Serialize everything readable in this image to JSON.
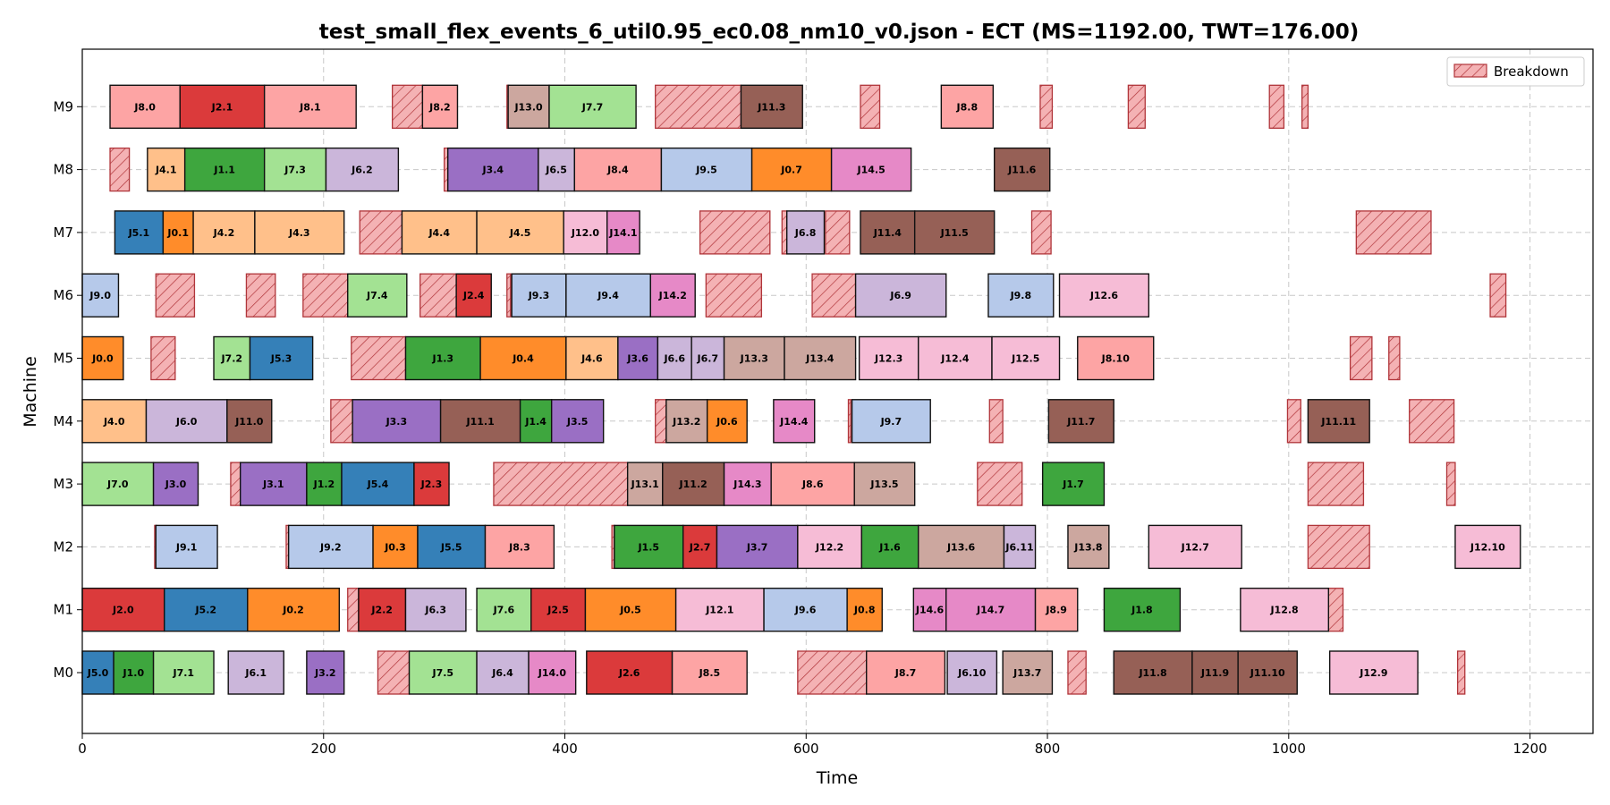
{
  "chart_data": {
    "type": "gantt",
    "title": "test_small_flex_events_6_util0.95_ec0.08_nm10_v0.json - ECT (MS=1192.00, TWT=176.00)",
    "xlabel": "Time",
    "ylabel": "Machine",
    "xlim": [
      0,
      1250
    ],
    "xticks": [
      0,
      200,
      400,
      600,
      800,
      1000,
      1200
    ],
    "machines": [
      "M0",
      "M1",
      "M2",
      "M3",
      "M4",
      "M5",
      "M6",
      "M7",
      "M8",
      "M9"
    ],
    "grid": true,
    "legend": {
      "position": "top-right",
      "entries": [
        "Breakdown"
      ]
    },
    "job_colors": {
      "J0": "#ff8c2a",
      "J1": "#3ea63e",
      "J2": "#db3a3b",
      "J3": "#9a6fc4",
      "J4": "#ffc08a",
      "J5": "#3580b8",
      "J6": "#cbb6da",
      "J7": "#a3e293",
      "J8": "#fda4a4",
      "J9": "#b6c9ea",
      "J11": "#966056",
      "J12": "#f6bcd6",
      "J13": "#cca79f",
      "J14": "#e689c7"
    },
    "breakdown_color": "#f4b2b4",
    "tasks": [
      {
        "m": "M0",
        "label": "J5.0",
        "start": 0,
        "end": 26
      },
      {
        "m": "M0",
        "label": "J1.0",
        "start": 26,
        "end": 59
      },
      {
        "m": "M0",
        "label": "J7.1",
        "start": 59,
        "end": 109
      },
      {
        "m": "M0",
        "label": "J6.1",
        "start": 121,
        "end": 167
      },
      {
        "m": "M0",
        "label": "J3.2",
        "start": 186,
        "end": 217
      },
      {
        "m": "M0",
        "label": "J7.5",
        "start": 271,
        "end": 327
      },
      {
        "m": "M0",
        "label": "J6.4",
        "start": 327,
        "end": 370
      },
      {
        "m": "M0",
        "label": "J14.0",
        "start": 370,
        "end": 409
      },
      {
        "m": "M0",
        "label": "J2.6",
        "start": 418,
        "end": 489
      },
      {
        "m": "M0",
        "label": "J8.5",
        "start": 489,
        "end": 551
      },
      {
        "m": "M0",
        "label": "J8.7",
        "start": 650,
        "end": 715
      },
      {
        "m": "M0",
        "label": "J6.10",
        "start": 717,
        "end": 758
      },
      {
        "m": "M0",
        "label": "J13.7",
        "start": 763,
        "end": 804
      },
      {
        "m": "M0",
        "label": "J11.8",
        "start": 855,
        "end": 920
      },
      {
        "m": "M0",
        "label": "J11.9",
        "start": 920,
        "end": 958
      },
      {
        "m": "M0",
        "label": "J11.10",
        "start": 958,
        "end": 1007
      },
      {
        "m": "M0",
        "label": "J12.9",
        "start": 1034,
        "end": 1107
      },
      {
        "m": "M1",
        "label": "J2.0",
        "start": 0,
        "end": 68
      },
      {
        "m": "M1",
        "label": "J5.2",
        "start": 68,
        "end": 137
      },
      {
        "m": "M1",
        "label": "J0.2",
        "start": 137,
        "end": 213
      },
      {
        "m": "M1",
        "label": "J2.2",
        "start": 229,
        "end": 268
      },
      {
        "m": "M1",
        "label": "J6.3",
        "start": 268,
        "end": 318
      },
      {
        "m": "M1",
        "label": "J7.6",
        "start": 327,
        "end": 372
      },
      {
        "m": "M1",
        "label": "J2.5",
        "start": 372,
        "end": 417
      },
      {
        "m": "M1",
        "label": "J0.5",
        "start": 417,
        "end": 492
      },
      {
        "m": "M1",
        "label": "J12.1",
        "start": 492,
        "end": 565
      },
      {
        "m": "M1",
        "label": "J9.6",
        "start": 565,
        "end": 634
      },
      {
        "m": "M1",
        "label": "J0.8",
        "start": 634,
        "end": 663
      },
      {
        "m": "M1",
        "label": "J14.6",
        "start": 689,
        "end": 716
      },
      {
        "m": "M1",
        "label": "J14.7",
        "start": 716,
        "end": 790
      },
      {
        "m": "M1",
        "label": "J8.9",
        "start": 790,
        "end": 825
      },
      {
        "m": "M1",
        "label": "J1.8",
        "start": 847,
        "end": 910
      },
      {
        "m": "M1",
        "label": "J12.8",
        "start": 960,
        "end": 1033
      },
      {
        "m": "M2",
        "label": "J9.1",
        "start": 61,
        "end": 112
      },
      {
        "m": "M2",
        "label": "J9.2",
        "start": 171,
        "end": 241
      },
      {
        "m": "M2",
        "label": "J0.3",
        "start": 241,
        "end": 278
      },
      {
        "m": "M2",
        "label": "J5.5",
        "start": 278,
        "end": 334
      },
      {
        "m": "M2",
        "label": "J8.3",
        "start": 334,
        "end": 391
      },
      {
        "m": "M2",
        "label": "J1.5",
        "start": 441,
        "end": 498
      },
      {
        "m": "M2",
        "label": "J2.7",
        "start": 498,
        "end": 526
      },
      {
        "m": "M2",
        "label": "J3.7",
        "start": 526,
        "end": 593
      },
      {
        "m": "M2",
        "label": "J12.2",
        "start": 593,
        "end": 646
      },
      {
        "m": "M2",
        "label": "J1.6",
        "start": 646,
        "end": 693
      },
      {
        "m": "M2",
        "label": "J13.6",
        "start": 693,
        "end": 764
      },
      {
        "m": "M2",
        "label": "J6.11",
        "start": 764,
        "end": 790
      },
      {
        "m": "M2",
        "label": "J13.8",
        "start": 817,
        "end": 851
      },
      {
        "m": "M2",
        "label": "J12.7",
        "start": 884,
        "end": 961
      },
      {
        "m": "M2",
        "label": "J12.10",
        "start": 1138,
        "end": 1192
      },
      {
        "m": "M3",
        "label": "J7.0",
        "start": 0,
        "end": 59
      },
      {
        "m": "M3",
        "label": "J3.0",
        "start": 59,
        "end": 96
      },
      {
        "m": "M3",
        "label": "J3.1",
        "start": 131,
        "end": 186
      },
      {
        "m": "M3",
        "label": "J1.2",
        "start": 186,
        "end": 215
      },
      {
        "m": "M3",
        "label": "J5.4",
        "start": 215,
        "end": 275
      },
      {
        "m": "M3",
        "label": "J2.3",
        "start": 275,
        "end": 304
      },
      {
        "m": "M3",
        "label": "J13.1",
        "start": 452,
        "end": 481
      },
      {
        "m": "M3",
        "label": "J11.2",
        "start": 481,
        "end": 532
      },
      {
        "m": "M3",
        "label": "J14.3",
        "start": 532,
        "end": 571
      },
      {
        "m": "M3",
        "label": "J8.6",
        "start": 571,
        "end": 640
      },
      {
        "m": "M3",
        "label": "J13.5",
        "start": 640,
        "end": 690
      },
      {
        "m": "M3",
        "label": "J1.7",
        "start": 796,
        "end": 847
      },
      {
        "m": "M4",
        "label": "J4.0",
        "start": 0,
        "end": 53
      },
      {
        "m": "M4",
        "label": "J6.0",
        "start": 53,
        "end": 120
      },
      {
        "m": "M4",
        "label": "J11.0",
        "start": 120,
        "end": 157
      },
      {
        "m": "M4",
        "label": "J3.3",
        "start": 224,
        "end": 297
      },
      {
        "m": "M4",
        "label": "J11.1",
        "start": 297,
        "end": 363
      },
      {
        "m": "M4",
        "label": "J1.4",
        "start": 363,
        "end": 389
      },
      {
        "m": "M4",
        "label": "J3.5",
        "start": 389,
        "end": 432
      },
      {
        "m": "M4",
        "label": "J13.2",
        "start": 484,
        "end": 518
      },
      {
        "m": "M4",
        "label": "J0.6",
        "start": 518,
        "end": 551
      },
      {
        "m": "M4",
        "label": "J14.4",
        "start": 573,
        "end": 607
      },
      {
        "m": "M4",
        "label": "J9.7",
        "start": 638,
        "end": 703
      },
      {
        "m": "M4",
        "label": "J11.7",
        "start": 801,
        "end": 855
      },
      {
        "m": "M4",
        "label": "J11.11",
        "start": 1016,
        "end": 1067
      },
      {
        "m": "M5",
        "label": "J0.0",
        "start": 0,
        "end": 34
      },
      {
        "m": "M5",
        "label": "J7.2",
        "start": 109,
        "end": 139
      },
      {
        "m": "M5",
        "label": "J5.3",
        "start": 139,
        "end": 191
      },
      {
        "m": "M5",
        "label": "J1.3",
        "start": 268,
        "end": 330
      },
      {
        "m": "M5",
        "label": "J0.4",
        "start": 330,
        "end": 401
      },
      {
        "m": "M5",
        "label": "J4.6",
        "start": 401,
        "end": 444
      },
      {
        "m": "M5",
        "label": "J3.6",
        "start": 444,
        "end": 477
      },
      {
        "m": "M5",
        "label": "J6.6",
        "start": 477,
        "end": 505
      },
      {
        "m": "M5",
        "label": "J6.7",
        "start": 505,
        "end": 532
      },
      {
        "m": "M5",
        "label": "J13.3",
        "start": 532,
        "end": 582
      },
      {
        "m": "M5",
        "label": "J13.4",
        "start": 582,
        "end": 641
      },
      {
        "m": "M5",
        "label": "J12.3",
        "start": 644,
        "end": 693
      },
      {
        "m": "M5",
        "label": "J12.4",
        "start": 693,
        "end": 754
      },
      {
        "m": "M5",
        "label": "J12.5",
        "start": 754,
        "end": 810
      },
      {
        "m": "M5",
        "label": "J8.10",
        "start": 825,
        "end": 888
      },
      {
        "m": "M6",
        "label": "J9.0",
        "start": 0,
        "end": 30
      },
      {
        "m": "M6",
        "label": "J7.4",
        "start": 220,
        "end": 269
      },
      {
        "m": "M6",
        "label": "J2.4",
        "start": 310,
        "end": 339
      },
      {
        "m": "M6",
        "label": "J9.3",
        "start": 356,
        "end": 401
      },
      {
        "m": "M6",
        "label": "J9.4",
        "start": 401,
        "end": 471
      },
      {
        "m": "M6",
        "label": "J14.2",
        "start": 471,
        "end": 508
      },
      {
        "m": "M6",
        "label": "J6.9",
        "start": 641,
        "end": 716
      },
      {
        "m": "M6",
        "label": "J9.8",
        "start": 751,
        "end": 805
      },
      {
        "m": "M6",
        "label": "J12.6",
        "start": 810,
        "end": 884
      },
      {
        "m": "M7",
        "label": "J5.1",
        "start": 27,
        "end": 67
      },
      {
        "m": "M7",
        "label": "J0.1",
        "start": 67,
        "end": 92
      },
      {
        "m": "M7",
        "label": "J4.2",
        "start": 92,
        "end": 143
      },
      {
        "m": "M7",
        "label": "J4.3",
        "start": 143,
        "end": 217
      },
      {
        "m": "M7",
        "label": "J4.4",
        "start": 265,
        "end": 327
      },
      {
        "m": "M7",
        "label": "J4.5",
        "start": 327,
        "end": 399
      },
      {
        "m": "M7",
        "label": "J12.0",
        "start": 399,
        "end": 435
      },
      {
        "m": "M7",
        "label": "J14.1",
        "start": 435,
        "end": 462
      },
      {
        "m": "M7",
        "label": "J6.8",
        "start": 584,
        "end": 615
      },
      {
        "m": "M7",
        "label": "J11.4",
        "start": 645,
        "end": 690
      },
      {
        "m": "M7",
        "label": "J11.5",
        "start": 690,
        "end": 756
      },
      {
        "m": "M8",
        "label": "J4.1",
        "start": 54,
        "end": 85
      },
      {
        "m": "M8",
        "label": "J1.1",
        "start": 85,
        "end": 151
      },
      {
        "m": "M8",
        "label": "J7.3",
        "start": 151,
        "end": 202
      },
      {
        "m": "M8",
        "label": "J6.2",
        "start": 202,
        "end": 262
      },
      {
        "m": "M8",
        "label": "J3.4",
        "start": 303,
        "end": 378
      },
      {
        "m": "M8",
        "label": "J6.5",
        "start": 378,
        "end": 408
      },
      {
        "m": "M8",
        "label": "J8.4",
        "start": 408,
        "end": 480
      },
      {
        "m": "M8",
        "label": "J9.5",
        "start": 480,
        "end": 555
      },
      {
        "m": "M8",
        "label": "J0.7",
        "start": 555,
        "end": 621
      },
      {
        "m": "M8",
        "label": "J14.5",
        "start": 621,
        "end": 687
      },
      {
        "m": "M8",
        "label": "J11.6",
        "start": 756,
        "end": 802
      },
      {
        "m": "M9",
        "label": "J8.0",
        "start": 23,
        "end": 81
      },
      {
        "m": "M9",
        "label": "J2.1",
        "start": 81,
        "end": 151
      },
      {
        "m": "M9",
        "label": "J8.1",
        "start": 151,
        "end": 227
      },
      {
        "m": "M9",
        "label": "J8.2",
        "start": 282,
        "end": 311
      },
      {
        "m": "M9",
        "label": "J13.0",
        "start": 353,
        "end": 387
      },
      {
        "m": "M9",
        "label": "J7.7",
        "start": 387,
        "end": 459
      },
      {
        "m": "M9",
        "label": "J11.3",
        "start": 546,
        "end": 597
      },
      {
        "m": "M9",
        "label": "J8.8",
        "start": 712,
        "end": 755
      }
    ],
    "breakdowns": [
      {
        "m": "M0",
        "start": 245,
        "end": 271
      },
      {
        "m": "M0",
        "start": 593,
        "end": 650
      },
      {
        "m": "M0",
        "start": 817,
        "end": 832
      },
      {
        "m": "M0",
        "start": 1140,
        "end": 1146
      },
      {
        "m": "M1",
        "start": 220,
        "end": 229
      },
      {
        "m": "M1",
        "start": 1033,
        "end": 1045
      },
      {
        "m": "M2",
        "start": 60,
        "end": 61
      },
      {
        "m": "M2",
        "start": 169,
        "end": 171
      },
      {
        "m": "M2",
        "start": 439,
        "end": 441
      },
      {
        "m": "M2",
        "start": 1016,
        "end": 1067
      },
      {
        "m": "M3",
        "start": 123,
        "end": 131
      },
      {
        "m": "M3",
        "start": 341,
        "end": 452
      },
      {
        "m": "M3",
        "start": 742,
        "end": 779
      },
      {
        "m": "M3",
        "start": 1016,
        "end": 1062
      },
      {
        "m": "M3",
        "start": 1131,
        "end": 1138
      },
      {
        "m": "M4",
        "start": 206,
        "end": 224
      },
      {
        "m": "M4",
        "start": 475,
        "end": 484
      },
      {
        "m": "M4",
        "start": 635,
        "end": 637
      },
      {
        "m": "M4",
        "start": 752,
        "end": 763
      },
      {
        "m": "M4",
        "start": 999,
        "end": 1010
      },
      {
        "m": "M4",
        "start": 1100,
        "end": 1137
      },
      {
        "m": "M5",
        "start": 57,
        "end": 77
      },
      {
        "m": "M5",
        "start": 223,
        "end": 268
      },
      {
        "m": "M5",
        "start": 1051,
        "end": 1069
      },
      {
        "m": "M5",
        "start": 1083,
        "end": 1092
      },
      {
        "m": "M6",
        "start": 61,
        "end": 93
      },
      {
        "m": "M6",
        "start": 136,
        "end": 160
      },
      {
        "m": "M6",
        "start": 183,
        "end": 220
      },
      {
        "m": "M6",
        "start": 280,
        "end": 310
      },
      {
        "m": "M6",
        "start": 352,
        "end": 355
      },
      {
        "m": "M6",
        "start": 517,
        "end": 563
      },
      {
        "m": "M6",
        "start": 605,
        "end": 641
      },
      {
        "m": "M6",
        "start": 1167,
        "end": 1180
      },
      {
        "m": "M7",
        "start": 230,
        "end": 265
      },
      {
        "m": "M7",
        "start": 512,
        "end": 570
      },
      {
        "m": "M7",
        "start": 580,
        "end": 584
      },
      {
        "m": "M7",
        "start": 616,
        "end": 636
      },
      {
        "m": "M7",
        "start": 787,
        "end": 803
      },
      {
        "m": "M7",
        "start": 1056,
        "end": 1118
      },
      {
        "m": "M8",
        "start": 23,
        "end": 39
      },
      {
        "m": "M8",
        "start": 300,
        "end": 303
      },
      {
        "m": "M9",
        "start": 257,
        "end": 282
      },
      {
        "m": "M9",
        "start": 352,
        "end": 353
      },
      {
        "m": "M9",
        "start": 475,
        "end": 546
      },
      {
        "m": "M9",
        "start": 645,
        "end": 661
      },
      {
        "m": "M9",
        "start": 794,
        "end": 804
      },
      {
        "m": "M9",
        "start": 867,
        "end": 881
      },
      {
        "m": "M9",
        "start": 984,
        "end": 996
      },
      {
        "m": "M9",
        "start": 1011,
        "end": 1016
      }
    ]
  }
}
